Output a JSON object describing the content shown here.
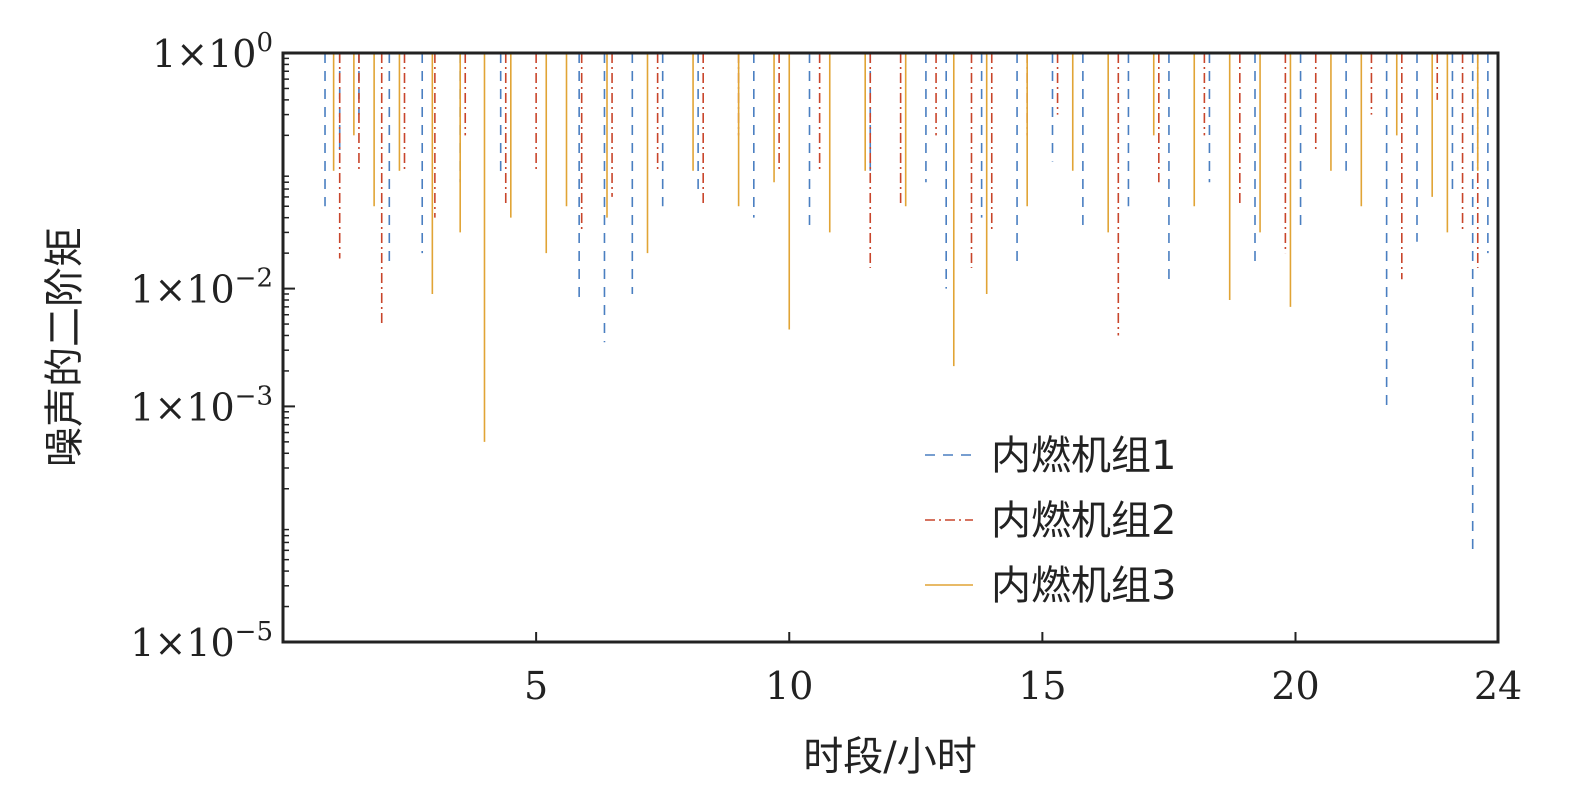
{
  "chart_data": {
    "type": "line",
    "xlabel": "时段/小时",
    "ylabel": "噪声的二阶矩",
    "xlim": [
      0,
      24
    ],
    "ylim": [
      1e-05,
      1
    ],
    "yscale": "log",
    "x_ticks": [
      {
        "value": 5,
        "label": "5"
      },
      {
        "value": 10,
        "label": "10"
      },
      {
        "value": 15,
        "label": "15"
      },
      {
        "value": 20,
        "label": "20"
      },
      {
        "value": 24,
        "label": "24"
      }
    ],
    "y_ticks": [
      {
        "value": 1,
        "base": "1×10",
        "exp": "0"
      },
      {
        "value": 0.01,
        "base": "1×10",
        "exp": "−2"
      },
      {
        "value": 0.001,
        "base": "1×10",
        "exp": "−3"
      },
      {
        "value": 1e-05,
        "base": "1×10",
        "exp": "−5"
      }
    ],
    "legend_position": "lower-right",
    "series": [
      {
        "name": "内燃机组1",
        "color": "#4a7fc1",
        "dash": "10,8",
        "points": [
          [
            0.83,
            0.05
          ],
          [
            1.12,
            0.15
          ],
          [
            1.5,
            0.3
          ],
          [
            2.1,
            0.015
          ],
          [
            2.75,
            0.02
          ],
          [
            3.5,
            0.08
          ],
          [
            4.3,
            0.09
          ],
          [
            5.85,
            0.008
          ],
          [
            6.35,
            0.0035
          ],
          [
            6.9,
            0.009
          ],
          [
            7.5,
            0.05
          ],
          [
            8.2,
            0.06
          ],
          [
            9.3,
            0.04
          ],
          [
            10.4,
            0.03
          ],
          [
            11.6,
            0.1
          ],
          [
            12.7,
            0.08
          ],
          [
            13.1,
            0.01
          ],
          [
            13.8,
            0.04
          ],
          [
            14.5,
            0.015
          ],
          [
            15.2,
            0.12
          ],
          [
            15.8,
            0.03
          ],
          [
            16.7,
            0.05
          ],
          [
            17.5,
            0.012
          ],
          [
            18.3,
            0.08
          ],
          [
            19.2,
            0.015
          ],
          [
            20.1,
            0.03
          ],
          [
            21.0,
            0.1
          ],
          [
            21.8,
            0.0009
          ],
          [
            22.4,
            0.025
          ],
          [
            23.1,
            0.06
          ],
          [
            23.5,
            6e-05
          ],
          [
            23.8,
            0.02
          ],
          [
            24.0,
            0.3
          ]
        ]
      },
      {
        "name": "内燃机组2",
        "color": "#c8452b",
        "dash": "10,4,2,4",
        "points": [
          [
            1.12,
            0.018
          ],
          [
            1.5,
            0.1
          ],
          [
            1.95,
            0.005
          ],
          [
            2.4,
            0.1
          ],
          [
            3.0,
            0.04
          ],
          [
            3.6,
            0.2
          ],
          [
            4.4,
            0.05
          ],
          [
            5.0,
            0.1
          ],
          [
            5.9,
            0.03
          ],
          [
            6.5,
            0.06
          ],
          [
            7.4,
            0.1
          ],
          [
            8.3,
            0.05
          ],
          [
            9.0,
            0.2
          ],
          [
            9.8,
            0.1
          ],
          [
            10.6,
            0.1
          ],
          [
            11.6,
            0.015
          ],
          [
            12.2,
            0.05
          ],
          [
            12.9,
            0.2
          ],
          [
            13.6,
            0.015
          ],
          [
            14.0,
            0.03
          ],
          [
            14.7,
            0.2
          ],
          [
            15.3,
            0.3
          ],
          [
            16.5,
            0.004
          ],
          [
            17.3,
            0.08
          ],
          [
            18.2,
            0.2
          ],
          [
            18.9,
            0.05
          ],
          [
            19.8,
            0.02
          ],
          [
            20.4,
            0.15
          ],
          [
            21.5,
            0.3
          ],
          [
            22.1,
            0.012
          ],
          [
            22.8,
            0.4
          ],
          [
            23.3,
            0.03
          ],
          [
            23.6,
            0.015
          ],
          [
            24.0,
            0.2
          ]
        ]
      },
      {
        "name": "内燃机组3",
        "color": "#e1a435",
        "dash": "",
        "points": [
          [
            1.0,
            0.1
          ],
          [
            1.4,
            0.2
          ],
          [
            1.8,
            0.05
          ],
          [
            2.3,
            0.1
          ],
          [
            2.95,
            0.009
          ],
          [
            3.5,
            0.03
          ],
          [
            3.98,
            0.0005
          ],
          [
            4.5,
            0.04
          ],
          [
            5.2,
            0.02
          ],
          [
            5.6,
            0.05
          ],
          [
            6.4,
            0.04
          ],
          [
            7.2,
            0.02
          ],
          [
            8.1,
            0.1
          ],
          [
            9.0,
            0.05
          ],
          [
            9.7,
            0.08
          ],
          [
            10.0,
            0.0045
          ],
          [
            10.8,
            0.03
          ],
          [
            11.5,
            0.1
          ],
          [
            12.3,
            0.05
          ],
          [
            13.25,
            0.0022
          ],
          [
            13.9,
            0.009
          ],
          [
            14.7,
            0.05
          ],
          [
            15.6,
            0.1
          ],
          [
            16.3,
            0.03
          ],
          [
            17.2,
            0.2
          ],
          [
            18.0,
            0.05
          ],
          [
            18.7,
            0.008
          ],
          [
            19.3,
            0.03
          ],
          [
            19.9,
            0.007
          ],
          [
            20.7,
            0.1
          ],
          [
            21.3,
            0.05
          ],
          [
            22.0,
            0.2
          ],
          [
            22.7,
            0.06
          ],
          [
            23.0,
            0.03
          ],
          [
            23.6,
            0.1
          ],
          [
            24.0,
            0.1
          ]
        ]
      }
    ]
  }
}
